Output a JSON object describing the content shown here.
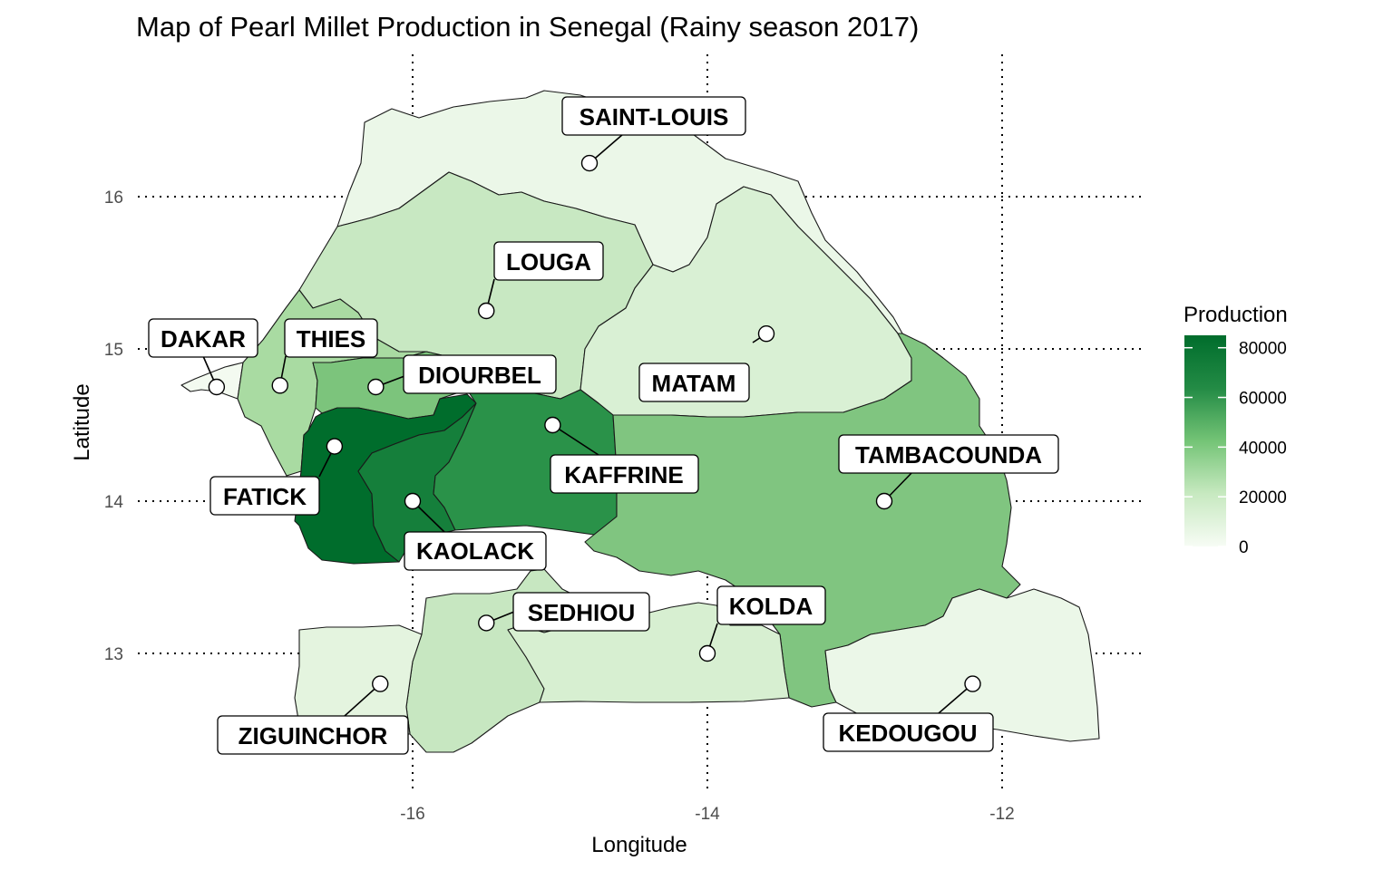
{
  "chart_data": {
    "type": "choropleth-map",
    "title": "Map of Pearl Millet Production in Senegal (Rainy season 2017)",
    "xlabel": "Longitude",
    "ylabel": "Latitude",
    "xlim": [
      -17.6,
      -11.3
    ],
    "ylim": [
      12.2,
      16.8
    ],
    "x_ticks": [
      {
        "value": -16,
        "label": "-16"
      },
      {
        "value": -14,
        "label": "-14"
      },
      {
        "value": -12,
        "label": "-12"
      }
    ],
    "y_ticks": [
      {
        "value": 16,
        "label": "16"
      },
      {
        "value": 15,
        "label": "15"
      },
      {
        "value": 14,
        "label": "14"
      },
      {
        "value": 13,
        "label": "13"
      }
    ],
    "grid": "dotted, major only",
    "legend": {
      "title": "Production",
      "position": "right",
      "min": 0,
      "max": 85000,
      "color_low": "#f7fcf5",
      "color_high": "#006d2c",
      "ticks": [
        {
          "value": 80000,
          "label": "80000"
        },
        {
          "value": 60000,
          "label": "60000"
        },
        {
          "value": 40000,
          "label": "40000"
        },
        {
          "value": 20000,
          "label": "20000"
        },
        {
          "value": 0,
          "label": "0"
        }
      ]
    },
    "regions": [
      {
        "name": "SAINT-LOUIS",
        "production": 4000,
        "color": "#ebf7e8",
        "point": [
          -14.8,
          16.22
        ]
      },
      {
        "name": "LOUGA",
        "production": 24000,
        "color": "#c8e8c2",
        "point": [
          -15.5,
          15.25
        ]
      },
      {
        "name": "MATAM",
        "production": 13000,
        "color": "#d9f0d4",
        "point": [
          -13.6,
          15.1
        ]
      },
      {
        "name": "DAKAR",
        "production": 600,
        "color": "#f3faf0",
        "point": [
          -17.33,
          14.75
        ]
      },
      {
        "name": "THIES",
        "production": 33000,
        "color": "#a9dba2",
        "point": [
          -16.9,
          14.76
        ]
      },
      {
        "name": "DIOURBEL",
        "production": 45000,
        "color": "#7cc47c",
        "point": [
          -16.25,
          14.75
        ]
      },
      {
        "name": "FATICK",
        "production": 82000,
        "color": "#006d2c",
        "point": [
          -16.53,
          14.36
        ]
      },
      {
        "name": "KAOLACK",
        "production": 77000,
        "color": "#157f3b",
        "point": [
          -16.0,
          14.0
        ]
      },
      {
        "name": "KAFFRINE",
        "production": 65000,
        "color": "#2a9249",
        "point": [
          -15.05,
          14.5
        ]
      },
      {
        "name": "TAMBACOUNDA",
        "production": 44000,
        "color": "#80c580",
        "point": [
          -12.8,
          14.0
        ]
      },
      {
        "name": "SEDHIOU",
        "production": 24000,
        "color": "#c7e7c1",
        "point": [
          -15.5,
          13.2
        ]
      },
      {
        "name": "KOLDA",
        "production": 15000,
        "color": "#d7efd1",
        "point": [
          -14.0,
          13.0
        ]
      },
      {
        "name": "ZIGUINCHOR",
        "production": 8000,
        "color": "#e4f4df",
        "point": [
          -16.22,
          12.8
        ]
      },
      {
        "name": "KEDOUGOU",
        "production": 4000,
        "color": "#ebf7e8",
        "point": [
          -12.2,
          12.8
        ]
      }
    ]
  }
}
